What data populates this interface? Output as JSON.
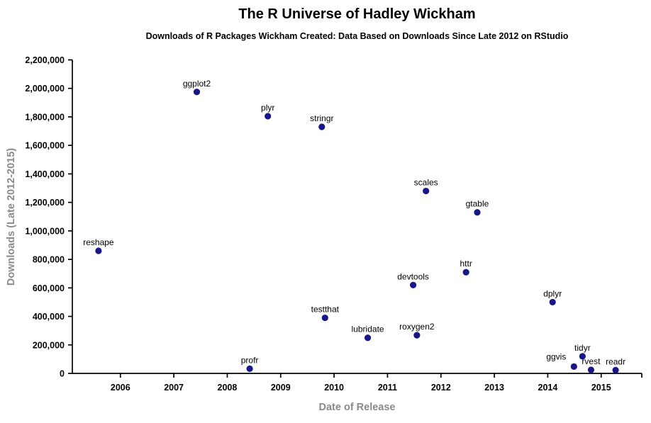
{
  "header": {
    "title": "The R Universe of Hadley Wickham",
    "subtitle": "Downloads of R Packages Wickham Created: Data Based on Downloads Since Late 2012 on RStudio"
  },
  "chart_data": {
    "type": "scatter",
    "title": "The R Universe of Hadley Wickham",
    "subtitle": "Downloads of R Packages Wickham Created: Data Based on Downloads Since Late 2012 on RStudio",
    "xlabel": "Date of Release",
    "ylabel": "Downloads (Late 2012-2015)",
    "xlim": [
      2005.1,
      2015.76
    ],
    "ylim": [
      0,
      2200000
    ],
    "x_ticks": [
      2006,
      2007,
      2008,
      2009,
      2010,
      2011,
      2012,
      2013,
      2014,
      2015
    ],
    "y_ticks": [
      0,
      200000,
      400000,
      600000,
      800000,
      1000000,
      1200000,
      1400000,
      1600000,
      1800000,
      2000000,
      2200000
    ],
    "grid": false,
    "legend": "none",
    "point_color": "#171787",
    "axis_color": "#000000",
    "tick_label_color": "#000000",
    "axis_title_color": "#8a8a8a",
    "points": [
      {
        "label": "reshape",
        "x": 2005.59,
        "y": 860000
      },
      {
        "label": "ggplot2",
        "x": 2007.43,
        "y": 1975000
      },
      {
        "label": "plyr",
        "x": 2008.76,
        "y": 1805000
      },
      {
        "label": "profr",
        "x": 2008.42,
        "y": 33000
      },
      {
        "label": "stringr",
        "x": 2009.77,
        "y": 1730000
      },
      {
        "label": "testthat",
        "x": 2009.83,
        "y": 390000
      },
      {
        "label": "lubridate",
        "x": 2010.63,
        "y": 250000
      },
      {
        "label": "devtools",
        "x": 2011.48,
        "y": 620000
      },
      {
        "label": "roxygen2",
        "x": 2011.55,
        "y": 268000
      },
      {
        "label": "scales",
        "x": 2011.72,
        "y": 1280000
      },
      {
        "label": "httr",
        "x": 2012.47,
        "y": 710000
      },
      {
        "label": "gtable",
        "x": 2012.68,
        "y": 1130000
      },
      {
        "label": "dplyr",
        "x": 2014.09,
        "y": 500000
      },
      {
        "label": "ggvis",
        "x": 2014.49,
        "y": 48000
      },
      {
        "label": "tidyr",
        "x": 2014.65,
        "y": 120000
      },
      {
        "label": "rvest",
        "x": 2014.81,
        "y": 25000
      },
      {
        "label": "readr",
        "x": 2015.27,
        "y": 23000
      }
    ]
  }
}
